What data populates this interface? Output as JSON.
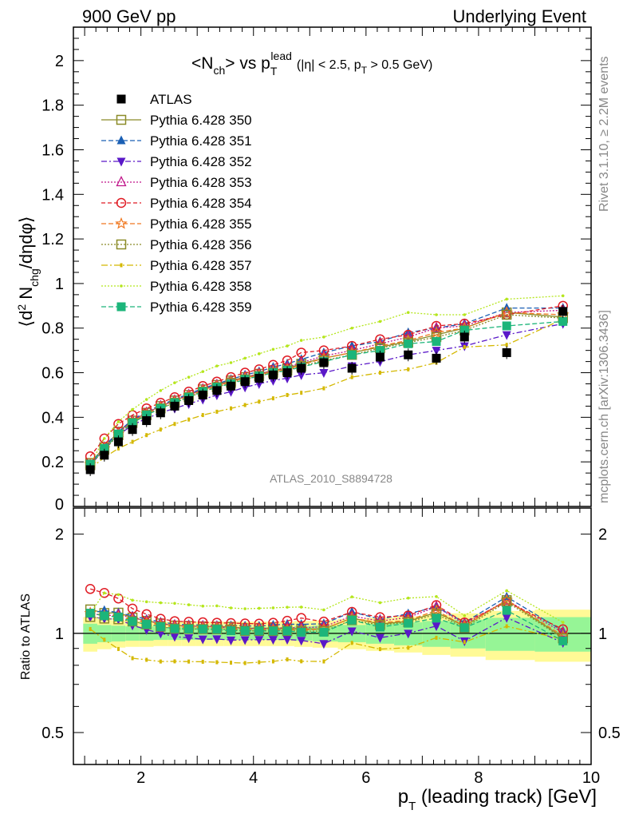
{
  "header": {
    "left_title": "900 GeV pp",
    "right_title": "Underlying Event"
  },
  "side_text": {
    "rivet": "Rivet 3.1.10, ≥ 2.2M events",
    "mcplots": "mcplots.cern.ch [arXiv:1306.3436]"
  },
  "watermark": "ATLAS_2010_S8894728",
  "chart_data": {
    "type": "scatter",
    "title": {
      "main": "<N",
      "main_sub": "ch",
      "main_mid": "> vs p",
      "main_sub2": "T",
      "main_sup2": "lead",
      "cut_a": "(|η| < 2.5, p",
      "cut_sub": "T",
      "cut_b": " > 0.5 GeV)"
    },
    "ylabel": {
      "a": "⟨d",
      "sup": "2",
      "b": " N",
      "sub": "chg",
      "c": "/dηdφ⟩"
    },
    "xlabel": {
      "a": "p",
      "sub": "T",
      "b": " (leading track) [GeV]"
    },
    "ratio_ylabel": "Ratio to ATLAS",
    "xlim": [
      0.8,
      10.0
    ],
    "ylim": [
      0,
      2.15
    ],
    "ratio_ylim": [
      0.4,
      2.4
    ],
    "x_ticks": [
      "2",
      "4",
      "6",
      "8",
      "10"
    ],
    "y_ticks": [
      "0",
      "0.2",
      "0.4",
      "0.6",
      "0.8",
      "1",
      "1.2",
      "1.4",
      "1.6",
      "1.8",
      "2"
    ],
    "ratio_y_ticks": [
      "0.5",
      "1",
      "2"
    ],
    "legend_position": "top-left",
    "x": [
      1.1,
      1.35,
      1.6,
      1.85,
      2.1,
      2.35,
      2.6,
      2.85,
      3.1,
      3.35,
      3.6,
      3.85,
      4.1,
      4.35,
      4.6,
      4.85,
      5.25,
      5.75,
      6.25,
      6.75,
      7.25,
      7.75,
      8.5,
      9.5
    ],
    "data": {
      "name": "ATLAS",
      "values": [
        0.165,
        0.23,
        0.29,
        0.345,
        0.385,
        0.42,
        0.45,
        0.475,
        0.5,
        0.52,
        0.54,
        0.56,
        0.575,
        0.59,
        0.6,
        0.62,
        0.645,
        0.62,
        0.67,
        0.68,
        0.665,
        0.76,
        0.69,
        0.875
      ],
      "band_inner": [
        0.93,
        0.94,
        0.945,
        0.95,
        0.95,
        0.955,
        0.955,
        0.955,
        0.955,
        0.955,
        0.955,
        0.955,
        0.955,
        0.955,
        0.955,
        0.95,
        0.945,
        0.94,
        0.93,
        0.92,
        0.91,
        0.9,
        0.885,
        0.88
      ],
      "band_outer": [
        0.88,
        0.895,
        0.905,
        0.91,
        0.91,
        0.915,
        0.915,
        0.915,
        0.915,
        0.915,
        0.915,
        0.915,
        0.915,
        0.915,
        0.915,
        0.91,
        0.905,
        0.895,
        0.885,
        0.875,
        0.86,
        0.85,
        0.83,
        0.82
      ]
    },
    "series": [
      {
        "name": "Pythia 6.428 350",
        "color": "#8b8b28",
        "marker": "square-open",
        "dash": "solid",
        "values": [
          0.195,
          0.265,
          0.335,
          0.385,
          0.42,
          0.45,
          0.475,
          0.5,
          0.525,
          0.545,
          0.565,
          0.58,
          0.595,
          0.61,
          0.62,
          0.64,
          0.665,
          0.69,
          0.715,
          0.74,
          0.77,
          0.8,
          0.87,
          0.85
        ]
      },
      {
        "name": "Pythia 6.428 351",
        "color": "#1a5fb4",
        "marker": "triangle-up",
        "dash": "6,3",
        "values": [
          0.19,
          0.27,
          0.335,
          0.39,
          0.425,
          0.455,
          0.48,
          0.505,
          0.53,
          0.55,
          0.57,
          0.59,
          0.605,
          0.625,
          0.64,
          0.66,
          0.69,
          0.72,
          0.74,
          0.78,
          0.8,
          0.82,
          0.89,
          0.89
        ]
      },
      {
        "name": "Pythia 6.428 352",
        "color": "#5a18c8",
        "marker": "triangle-down",
        "dash": "7,3,2,3",
        "values": [
          0.185,
          0.255,
          0.32,
          0.365,
          0.395,
          0.42,
          0.44,
          0.46,
          0.48,
          0.5,
          0.515,
          0.535,
          0.55,
          0.565,
          0.575,
          0.59,
          0.6,
          0.63,
          0.65,
          0.68,
          0.7,
          0.72,
          0.77,
          0.82
        ]
      },
      {
        "name": "Pythia 6.428 353",
        "color": "#c0158a",
        "marker": "triangle-up-open",
        "dash": "2,2",
        "values": [
          0.19,
          0.26,
          0.33,
          0.385,
          0.42,
          0.45,
          0.475,
          0.5,
          0.525,
          0.545,
          0.56,
          0.58,
          0.595,
          0.61,
          0.625,
          0.645,
          0.675,
          0.7,
          0.73,
          0.76,
          0.8,
          0.81,
          0.87,
          0.88
        ]
      },
      {
        "name": "Pythia 6.428 354",
        "color": "#e01b24",
        "marker": "circle-open",
        "dash": "5,3",
        "values": [
          0.225,
          0.305,
          0.37,
          0.41,
          0.44,
          0.465,
          0.49,
          0.515,
          0.54,
          0.56,
          0.58,
          0.6,
          0.615,
          0.635,
          0.655,
          0.69,
          0.7,
          0.72,
          0.75,
          0.77,
          0.81,
          0.82,
          0.86,
          0.9
        ]
      },
      {
        "name": "Pythia 6.428 355",
        "color": "#f07820",
        "marker": "star-open",
        "dash": "6,3",
        "values": [
          0.19,
          0.26,
          0.325,
          0.38,
          0.415,
          0.445,
          0.47,
          0.495,
          0.52,
          0.54,
          0.56,
          0.575,
          0.59,
          0.605,
          0.615,
          0.635,
          0.665,
          0.69,
          0.72,
          0.745,
          0.78,
          0.8,
          0.87,
          0.86
        ]
      },
      {
        "name": "Pythia 6.428 356",
        "color": "#8b8b28",
        "marker": "square-open",
        "dash": "2,2",
        "values": [
          0.185,
          0.255,
          0.32,
          0.375,
          0.41,
          0.44,
          0.465,
          0.49,
          0.515,
          0.535,
          0.555,
          0.57,
          0.585,
          0.6,
          0.61,
          0.63,
          0.655,
          0.68,
          0.71,
          0.735,
          0.76,
          0.79,
          0.86,
          0.845
        ]
      },
      {
        "name": "Pythia 6.428 357",
        "color": "#d4b800",
        "marker": "dash",
        "dash": "8,3,2,3",
        "values": [
          0.17,
          0.22,
          0.26,
          0.29,
          0.32,
          0.345,
          0.37,
          0.39,
          0.41,
          0.425,
          0.44,
          0.455,
          0.47,
          0.485,
          0.5,
          0.51,
          0.53,
          0.58,
          0.6,
          0.615,
          0.645,
          0.715,
          0.725,
          0.84
        ]
      },
      {
        "name": "Pythia 6.428 358",
        "color": "#b5e61d",
        "marker": "dot",
        "dash": "2,2",
        "values": [
          0.19,
          0.305,
          0.38,
          0.435,
          0.48,
          0.52,
          0.555,
          0.58,
          0.605,
          0.63,
          0.645,
          0.665,
          0.685,
          0.705,
          0.72,
          0.745,
          0.76,
          0.8,
          0.83,
          0.87,
          0.86,
          0.86,
          0.93,
          0.945
        ]
      },
      {
        "name": "Pythia 6.428 359",
        "color": "#1cb57a",
        "marker": "square",
        "dash": "6,3",
        "values": [
          0.19,
          0.26,
          0.325,
          0.375,
          0.41,
          0.44,
          0.465,
          0.49,
          0.515,
          0.535,
          0.55,
          0.57,
          0.585,
          0.6,
          0.61,
          0.625,
          0.65,
          0.68,
          0.7,
          0.73,
          0.74,
          0.79,
          0.81,
          0.83
        ]
      }
    ]
  }
}
